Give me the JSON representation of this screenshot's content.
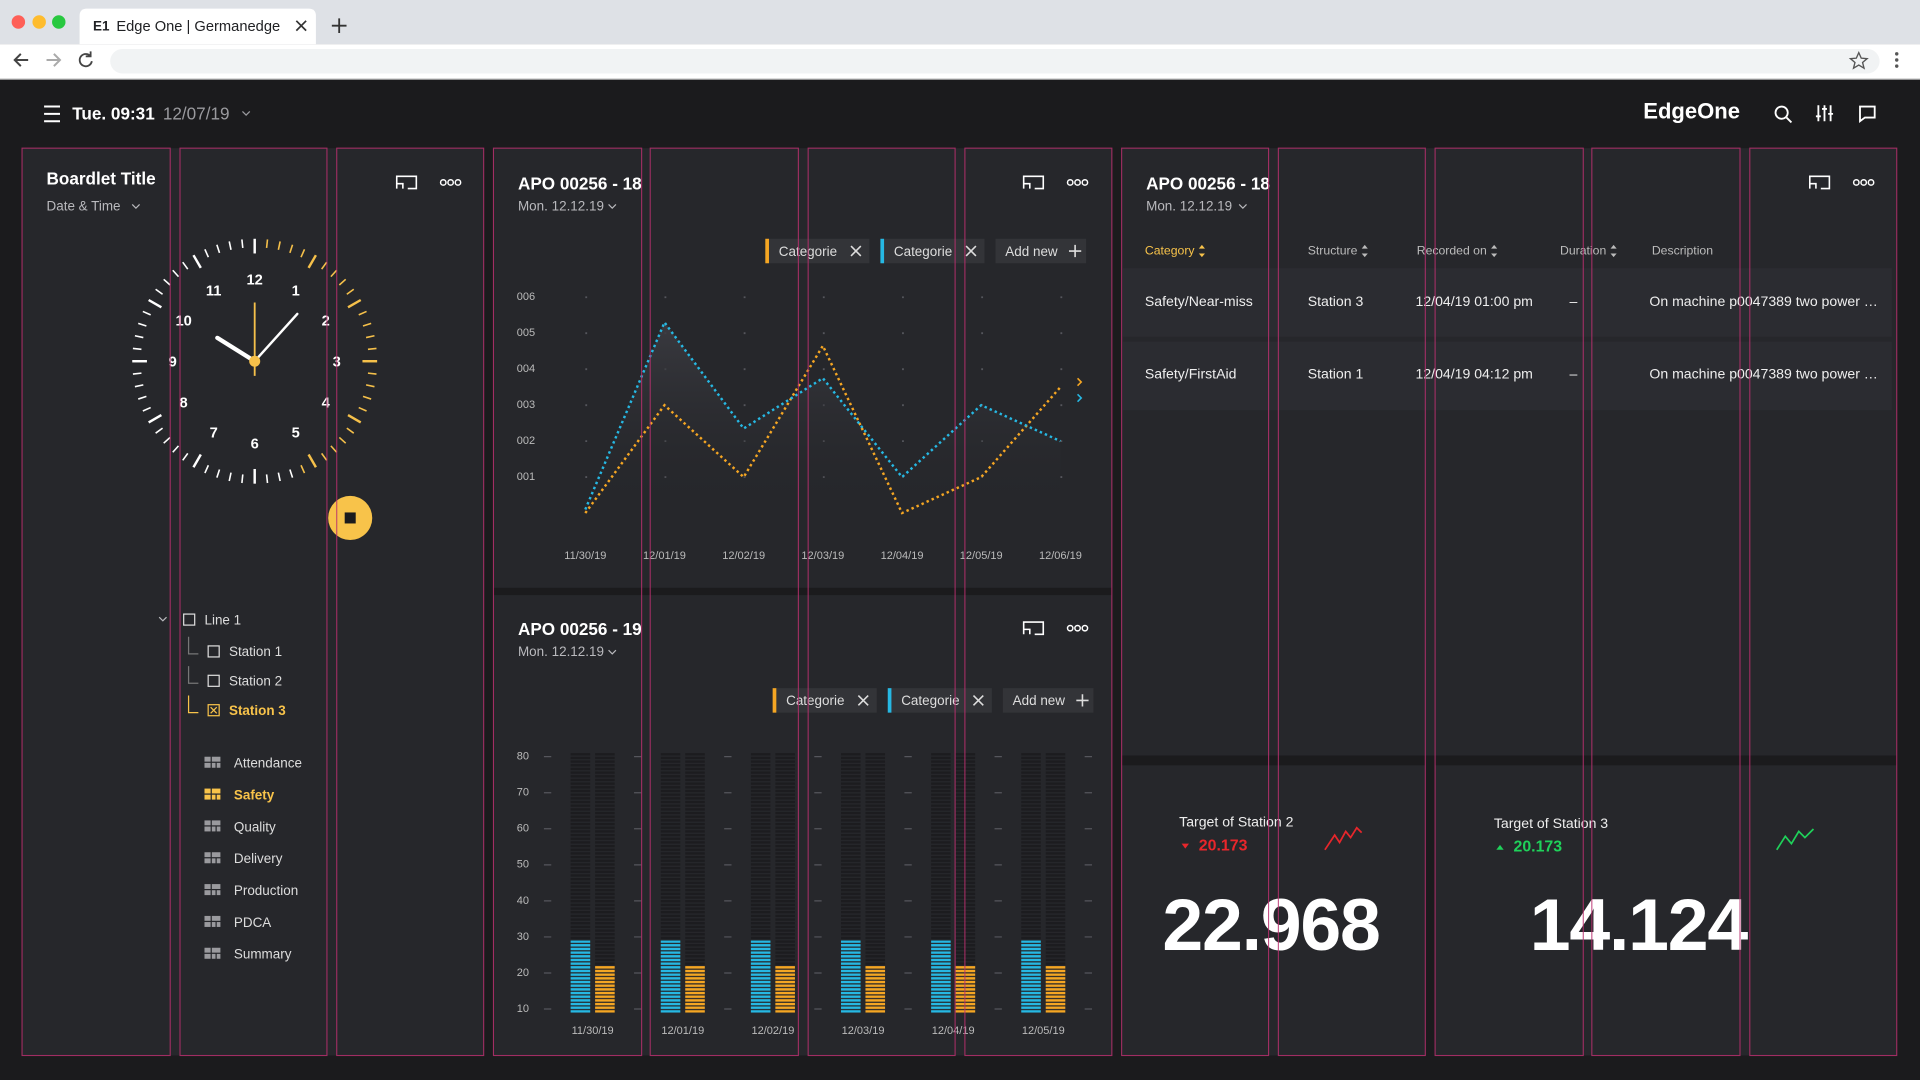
{
  "browser": {
    "tab_icon": "E1",
    "tab_title": "Edge One | Germanedge"
  },
  "header": {
    "time": "Tue. 09:31",
    "date": "12/07/19",
    "brand": "EdgeOne"
  },
  "boardlet": {
    "title": "Boardlet Title",
    "subtitle": "Date & Time",
    "clock_numbers": [
      "12",
      "1",
      "2",
      "3",
      "4",
      "5",
      "6",
      "7",
      "8",
      "9",
      "10",
      "11"
    ],
    "tree": {
      "root": "Line 1",
      "children": [
        "Station 1",
        "Station 2",
        "Station 3"
      ],
      "selected": 2
    },
    "menu": {
      "items": [
        "Attendance",
        "Safety",
        "Quality",
        "Delivery",
        "Production",
        "PDCA",
        "Summary"
      ],
      "active": 1
    }
  },
  "chart_data": [
    {
      "type": "line",
      "title": "APO 00256 - 18",
      "subtitle": "Mon. 12.12.19",
      "add_label": "Add new",
      "categories": [
        "11/30/19",
        "12/01/19",
        "12/02/19",
        "12/03/19",
        "12/04/19",
        "12/05/19",
        "12/06/19"
      ],
      "series": [
        {
          "name": "Categorie",
          "color": "#f5a623",
          "values": [
            0,
            3.0,
            1.0,
            4.65,
            0,
            1.0,
            3.5
          ]
        },
        {
          "name": "Categorie",
          "color": "#26b8e3",
          "values": [
            0.1,
            5.3,
            2.35,
            3.75,
            1.0,
            3.0,
            2.0
          ]
        }
      ],
      "ylim": [
        0,
        6.4
      ],
      "yticks": [
        {
          "value": 1,
          "label": "001"
        },
        {
          "value": 2,
          "label": "002"
        },
        {
          "value": 3,
          "label": "003"
        },
        {
          "value": 4,
          "label": "004"
        },
        {
          "value": 5,
          "label": "005"
        },
        {
          "value": 6,
          "label": "006"
        }
      ],
      "grid": true
    },
    {
      "type": "bar",
      "title": "APO 00256 - 19",
      "subtitle": "Mon. 12.12.19",
      "add_label": "Add new",
      "categories": [
        "11/30/19",
        "12/01/19",
        "12/02/19",
        "12/03/19",
        "12/04/19",
        "12/05/19"
      ],
      "series": [
        {
          "name": "Categorie",
          "color": "#f5a623",
          "values": [
            22,
            22,
            22,
            22,
            22,
            22
          ]
        },
        {
          "name": "Categorie",
          "color": "#26b8e3",
          "values": [
            29,
            29,
            29,
            29,
            29,
            29
          ]
        }
      ],
      "ylim": [
        9,
        81
      ],
      "yticks": [
        10,
        20,
        30,
        40,
        50,
        60,
        70,
        80
      ],
      "grid": true
    }
  ],
  "table": {
    "title": "APO 00256 - 18",
    "subtitle": "Mon. 12.12.19",
    "columns": [
      "Category",
      "Structure",
      "Recorded on",
      "Duration",
      "Description"
    ],
    "sort_column": 0,
    "rows": [
      [
        "Safety/Near-miss",
        "Station 3",
        "12/04/19 01:00 pm",
        "–",
        "On machine p0047389 two power …"
      ],
      [
        "Safety/FirstAid",
        "Station 1",
        "12/04/19 04:12 pm",
        "–",
        "On machine p0047389 two power …"
      ]
    ]
  },
  "kpis": [
    {
      "label": "Target of Station 2",
      "delta": 20.173,
      "trend": "down",
      "color": "#e8262b",
      "value": 22.968
    },
    {
      "label": "Target of Station 3",
      "delta": 20.173,
      "trend": "up",
      "color": "#1fd15a",
      "value": 14.124
    }
  ]
}
